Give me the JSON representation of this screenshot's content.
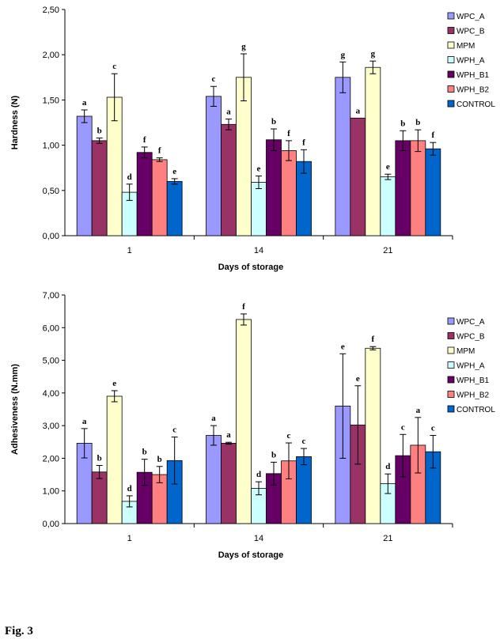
{
  "figure_caption": "Fig. 3",
  "colors": {
    "WPC_A": "#9999ff",
    "WPC_B": "#993366",
    "MPM": "#ffffcc",
    "WPH_A": "#ccffff",
    "WPH_B1": "#660066",
    "WPH_B2": "#ff8080",
    "CONTROL": "#0066cc"
  },
  "chart_data": [
    {
      "type": "bar",
      "ylabel": "Hardness (N)",
      "xlabel": "Days of storage",
      "categories": [
        "1",
        "14",
        "21"
      ],
      "ylim": [
        0,
        2.5
      ],
      "yticks": [
        "0,00",
        "0,50",
        "1,00",
        "1,50",
        "2,00",
        "2,50"
      ],
      "legend_position": "right",
      "series": [
        {
          "name": "WPC_A",
          "values": [
            1.32,
            1.54,
            1.75
          ],
          "errors": [
            0.07,
            0.11,
            0.17
          ],
          "labels": [
            "a",
            "c",
            "g"
          ]
        },
        {
          "name": "WPC_B",
          "values": [
            1.05,
            1.23,
            1.3
          ],
          "errors": [
            0.03,
            0.06,
            0.0
          ],
          "labels": [
            "b",
            "a",
            "a"
          ]
        },
        {
          "name": "MPM",
          "values": [
            1.53,
            1.75,
            1.86
          ],
          "errors": [
            0.26,
            0.26,
            0.07
          ],
          "labels": [
            "c",
            "g",
            "g"
          ]
        },
        {
          "name": "WPH_A",
          "values": [
            0.48,
            0.59,
            0.65
          ],
          "errors": [
            0.09,
            0.07,
            0.03
          ],
          "labels": [
            "d",
            "e",
            "e"
          ]
        },
        {
          "name": "WPH_B1",
          "values": [
            0.92,
            1.06,
            1.05
          ],
          "errors": [
            0.06,
            0.12,
            0.11
          ],
          "labels": [
            "f",
            "b",
            "b"
          ]
        },
        {
          "name": "WPH_B2",
          "values": [
            0.84,
            0.94,
            1.05
          ],
          "errors": [
            0.02,
            0.11,
            0.12
          ],
          "labels": [
            "f",
            "f",
            "b"
          ]
        },
        {
          "name": "CONTROL",
          "values": [
            0.6,
            0.82,
            0.96
          ],
          "errors": [
            0.03,
            0.13,
            0.07
          ],
          "labels": [
            "e",
            "f",
            "f"
          ]
        }
      ]
    },
    {
      "type": "bar",
      "ylabel": "Adhesiveness (N.mm)",
      "xlabel": "Days of storage",
      "categories": [
        "1",
        "14",
        "21"
      ],
      "ylim": [
        0,
        7
      ],
      "yticks": [
        "0,00",
        "1,00",
        "2,00",
        "3,00",
        "4,00",
        "5,00",
        "6,00",
        "7,00"
      ],
      "legend_position": "right",
      "series": [
        {
          "name": "WPC_A",
          "values": [
            2.46,
            2.7,
            3.6
          ],
          "errors": [
            0.45,
            0.3,
            1.6
          ],
          "labels": [
            "a",
            "a",
            "e"
          ]
        },
        {
          "name": "WPC_B",
          "values": [
            1.58,
            2.46,
            3.02
          ],
          "errors": [
            0.2,
            0.03,
            1.2
          ],
          "labels": [
            "b",
            "a",
            "e"
          ]
        },
        {
          "name": "MPM",
          "values": [
            3.9,
            6.25,
            5.37
          ],
          "errors": [
            0.17,
            0.17,
            0.05
          ],
          "labels": [
            "e",
            "f",
            "f"
          ]
        },
        {
          "name": "WPH_A",
          "values": [
            0.68,
            1.08,
            1.22
          ],
          "errors": [
            0.17,
            0.2,
            0.3
          ],
          "labels": [
            "d",
            "d",
            "d"
          ]
        },
        {
          "name": "WPH_B1",
          "values": [
            1.57,
            1.53,
            2.08
          ],
          "errors": [
            0.4,
            0.35,
            0.65
          ],
          "labels": [
            "b",
            "b",
            "c"
          ]
        },
        {
          "name": "WPH_B2",
          "values": [
            1.5,
            1.92,
            2.4
          ],
          "errors": [
            0.25,
            0.55,
            0.85
          ],
          "labels": [
            "b",
            "c",
            "a"
          ]
        },
        {
          "name": "CONTROL",
          "values": [
            1.93,
            2.05,
            2.2
          ],
          "errors": [
            0.72,
            0.25,
            0.5
          ],
          "labels": [
            "c",
            "c",
            "c"
          ]
        }
      ]
    }
  ]
}
